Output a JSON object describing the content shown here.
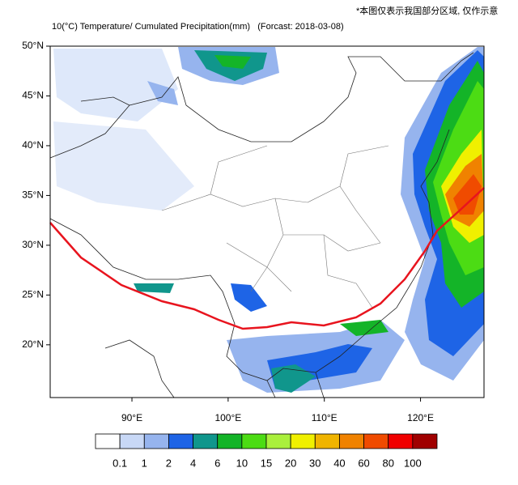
{
  "chart_data": {
    "type": "map",
    "title": "10(°C) Temperature/ Cumulated Precipitation(mm)   (Forcast: 2018-03-08)",
    "note": "*本图仅表示我国部分区域, 仅作示意",
    "xlim": [
      81.5,
      126.6
    ],
    "ylim": [
      14.7,
      50
    ],
    "xticks": [
      {
        "value": 90,
        "label": "90°E"
      },
      {
        "value": 100,
        "label": "100°E"
      },
      {
        "value": 110,
        "label": "110°E"
      },
      {
        "value": 120,
        "label": "120°E"
      }
    ],
    "yticks": [
      {
        "value": 20,
        "label": "20°N"
      },
      {
        "value": 25,
        "label": "25°N"
      },
      {
        "value": 30,
        "label": "30°N"
      },
      {
        "value": 35,
        "label": "35°N"
      },
      {
        "value": 40,
        "label": "40°N"
      },
      {
        "value": 45,
        "label": "45°N"
      },
      {
        "value": 50,
        "label": "50°N"
      }
    ],
    "colorbar": {
      "levels": [
        0.1,
        1,
        2,
        4,
        6,
        10,
        15,
        20,
        30,
        40,
        60,
        80,
        100
      ],
      "colors": [
        "#ffffff",
        "#c8d8f6",
        "#96b4ee",
        "#1e64e6",
        "#10968c",
        "#14b428",
        "#4cdc14",
        "#aaf03c",
        "#f0f000",
        "#f0b400",
        "#f08200",
        "#f04b00",
        "#f00000",
        "#a00000"
      ]
    }
  }
}
